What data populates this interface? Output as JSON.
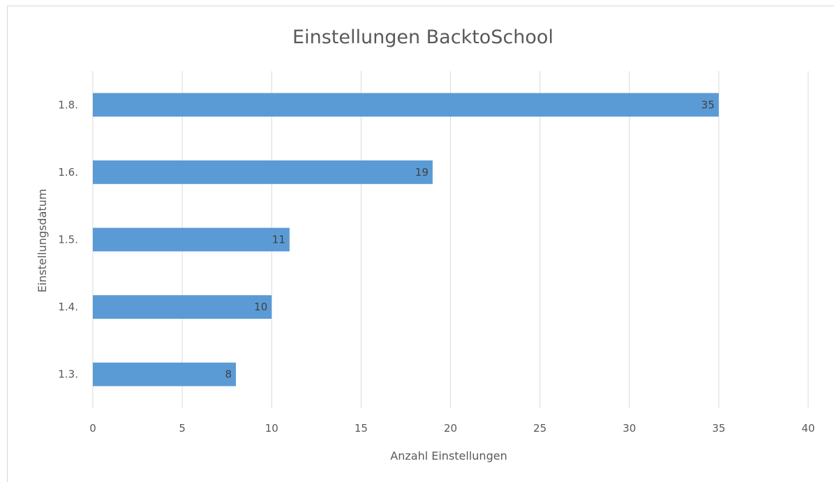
{
  "chart_data": {
    "type": "bar",
    "orientation": "horizontal",
    "title": "Einstellungen BacktoSchool",
    "xlabel": "Anzahl Einstellungen",
    "ylabel": "Einstellungsdatum",
    "categories": [
      "1.3.",
      "1.4.",
      "1.5.",
      "1.6.",
      "1.8."
    ],
    "values": [
      8,
      10,
      11,
      19,
      35
    ],
    "xlim": [
      0,
      40
    ],
    "xticks": [
      0,
      5,
      10,
      15,
      20,
      25,
      30,
      35,
      40
    ],
    "grid": "vertical",
    "legend": "none",
    "data_labels": "inside-end",
    "colors": {
      "bar": "#5b9bd5",
      "gridline": "#d9d9d9",
      "text": "#595959",
      "data_label": "#404040",
      "frame": "#d9d9d9"
    }
  }
}
